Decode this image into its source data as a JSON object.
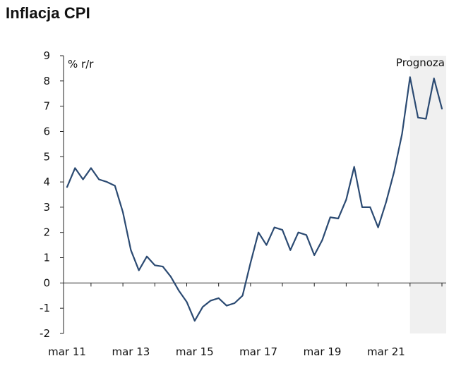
{
  "chart_data": {
    "type": "line",
    "title": "Inflacja CPI",
    "ylabel": "% r/r",
    "xlabel": "",
    "ylim": [
      -2,
      9
    ],
    "y_ticks": [
      -2,
      -1,
      0,
      1,
      2,
      3,
      4,
      5,
      6,
      7,
      8,
      9
    ],
    "x_range": [
      "2011-03",
      "2022-12"
    ],
    "x_tick_labels": [
      {
        "x": "2011-03",
        "label": "mar 11"
      },
      {
        "x": "2013-03",
        "label": "mar 13"
      },
      {
        "x": "2015-03",
        "label": "mar 15"
      },
      {
        "x": "2017-03",
        "label": "mar 17"
      },
      {
        "x": "2019-03",
        "label": "mar 19"
      },
      {
        "x": "2021-03",
        "label": "mar 21"
      }
    ],
    "forecast": {
      "label": "Prognoza",
      "start": "2021-12",
      "end": "2022-12"
    },
    "grid": false,
    "series": [
      {
        "name": "",
        "color": "#2b4a72",
        "points": [
          {
            "x": "2011-03",
            "y": 3.8
          },
          {
            "x": "2011-06",
            "y": 4.55
          },
          {
            "x": "2011-09",
            "y": 4.1
          },
          {
            "x": "2011-12",
            "y": 4.55
          },
          {
            "x": "2012-03",
            "y": 4.1
          },
          {
            "x": "2012-06",
            "y": 4.0
          },
          {
            "x": "2012-09",
            "y": 3.85
          },
          {
            "x": "2012-12",
            "y": 2.8
          },
          {
            "x": "2013-03",
            "y": 1.3
          },
          {
            "x": "2013-06",
            "y": 0.5
          },
          {
            "x": "2013-09",
            "y": 1.05
          },
          {
            "x": "2013-12",
            "y": 0.7
          },
          {
            "x": "2014-03",
            "y": 0.65
          },
          {
            "x": "2014-06",
            "y": 0.25
          },
          {
            "x": "2014-09",
            "y": -0.3
          },
          {
            "x": "2014-12",
            "y": -0.75
          },
          {
            "x": "2015-03",
            "y": -1.5
          },
          {
            "x": "2015-06",
            "y": -0.95
          },
          {
            "x": "2015-09",
            "y": -0.7
          },
          {
            "x": "2015-12",
            "y": -0.6
          },
          {
            "x": "2016-03",
            "y": -0.9
          },
          {
            "x": "2016-06",
            "y": -0.8
          },
          {
            "x": "2016-09",
            "y": -0.5
          },
          {
            "x": "2016-12",
            "y": 0.8
          },
          {
            "x": "2017-03",
            "y": 2.0
          },
          {
            "x": "2017-06",
            "y": 1.5
          },
          {
            "x": "2017-09",
            "y": 2.2
          },
          {
            "x": "2017-12",
            "y": 2.1
          },
          {
            "x": "2018-03",
            "y": 1.3
          },
          {
            "x": "2018-06",
            "y": 2.0
          },
          {
            "x": "2018-09",
            "y": 1.9
          },
          {
            "x": "2018-12",
            "y": 1.1
          },
          {
            "x": "2019-03",
            "y": 1.7
          },
          {
            "x": "2019-06",
            "y": 2.6
          },
          {
            "x": "2019-09",
            "y": 2.55
          },
          {
            "x": "2019-12",
            "y": 3.3
          },
          {
            "x": "2020-03",
            "y": 4.6
          },
          {
            "x": "2020-06",
            "y": 3.0
          },
          {
            "x": "2020-09",
            "y": 3.0
          },
          {
            "x": "2020-12",
            "y": 2.2
          },
          {
            "x": "2021-03",
            "y": 3.2
          },
          {
            "x": "2021-06",
            "y": 4.4
          },
          {
            "x": "2021-09",
            "y": 5.9
          },
          {
            "x": "2021-12",
            "y": 8.15
          },
          {
            "x": "2022-03",
            "y": 6.55
          },
          {
            "x": "2022-06",
            "y": 6.5
          },
          {
            "x": "2022-09",
            "y": 8.1
          },
          {
            "x": "2022-12",
            "y": 6.9
          }
        ]
      }
    ]
  }
}
